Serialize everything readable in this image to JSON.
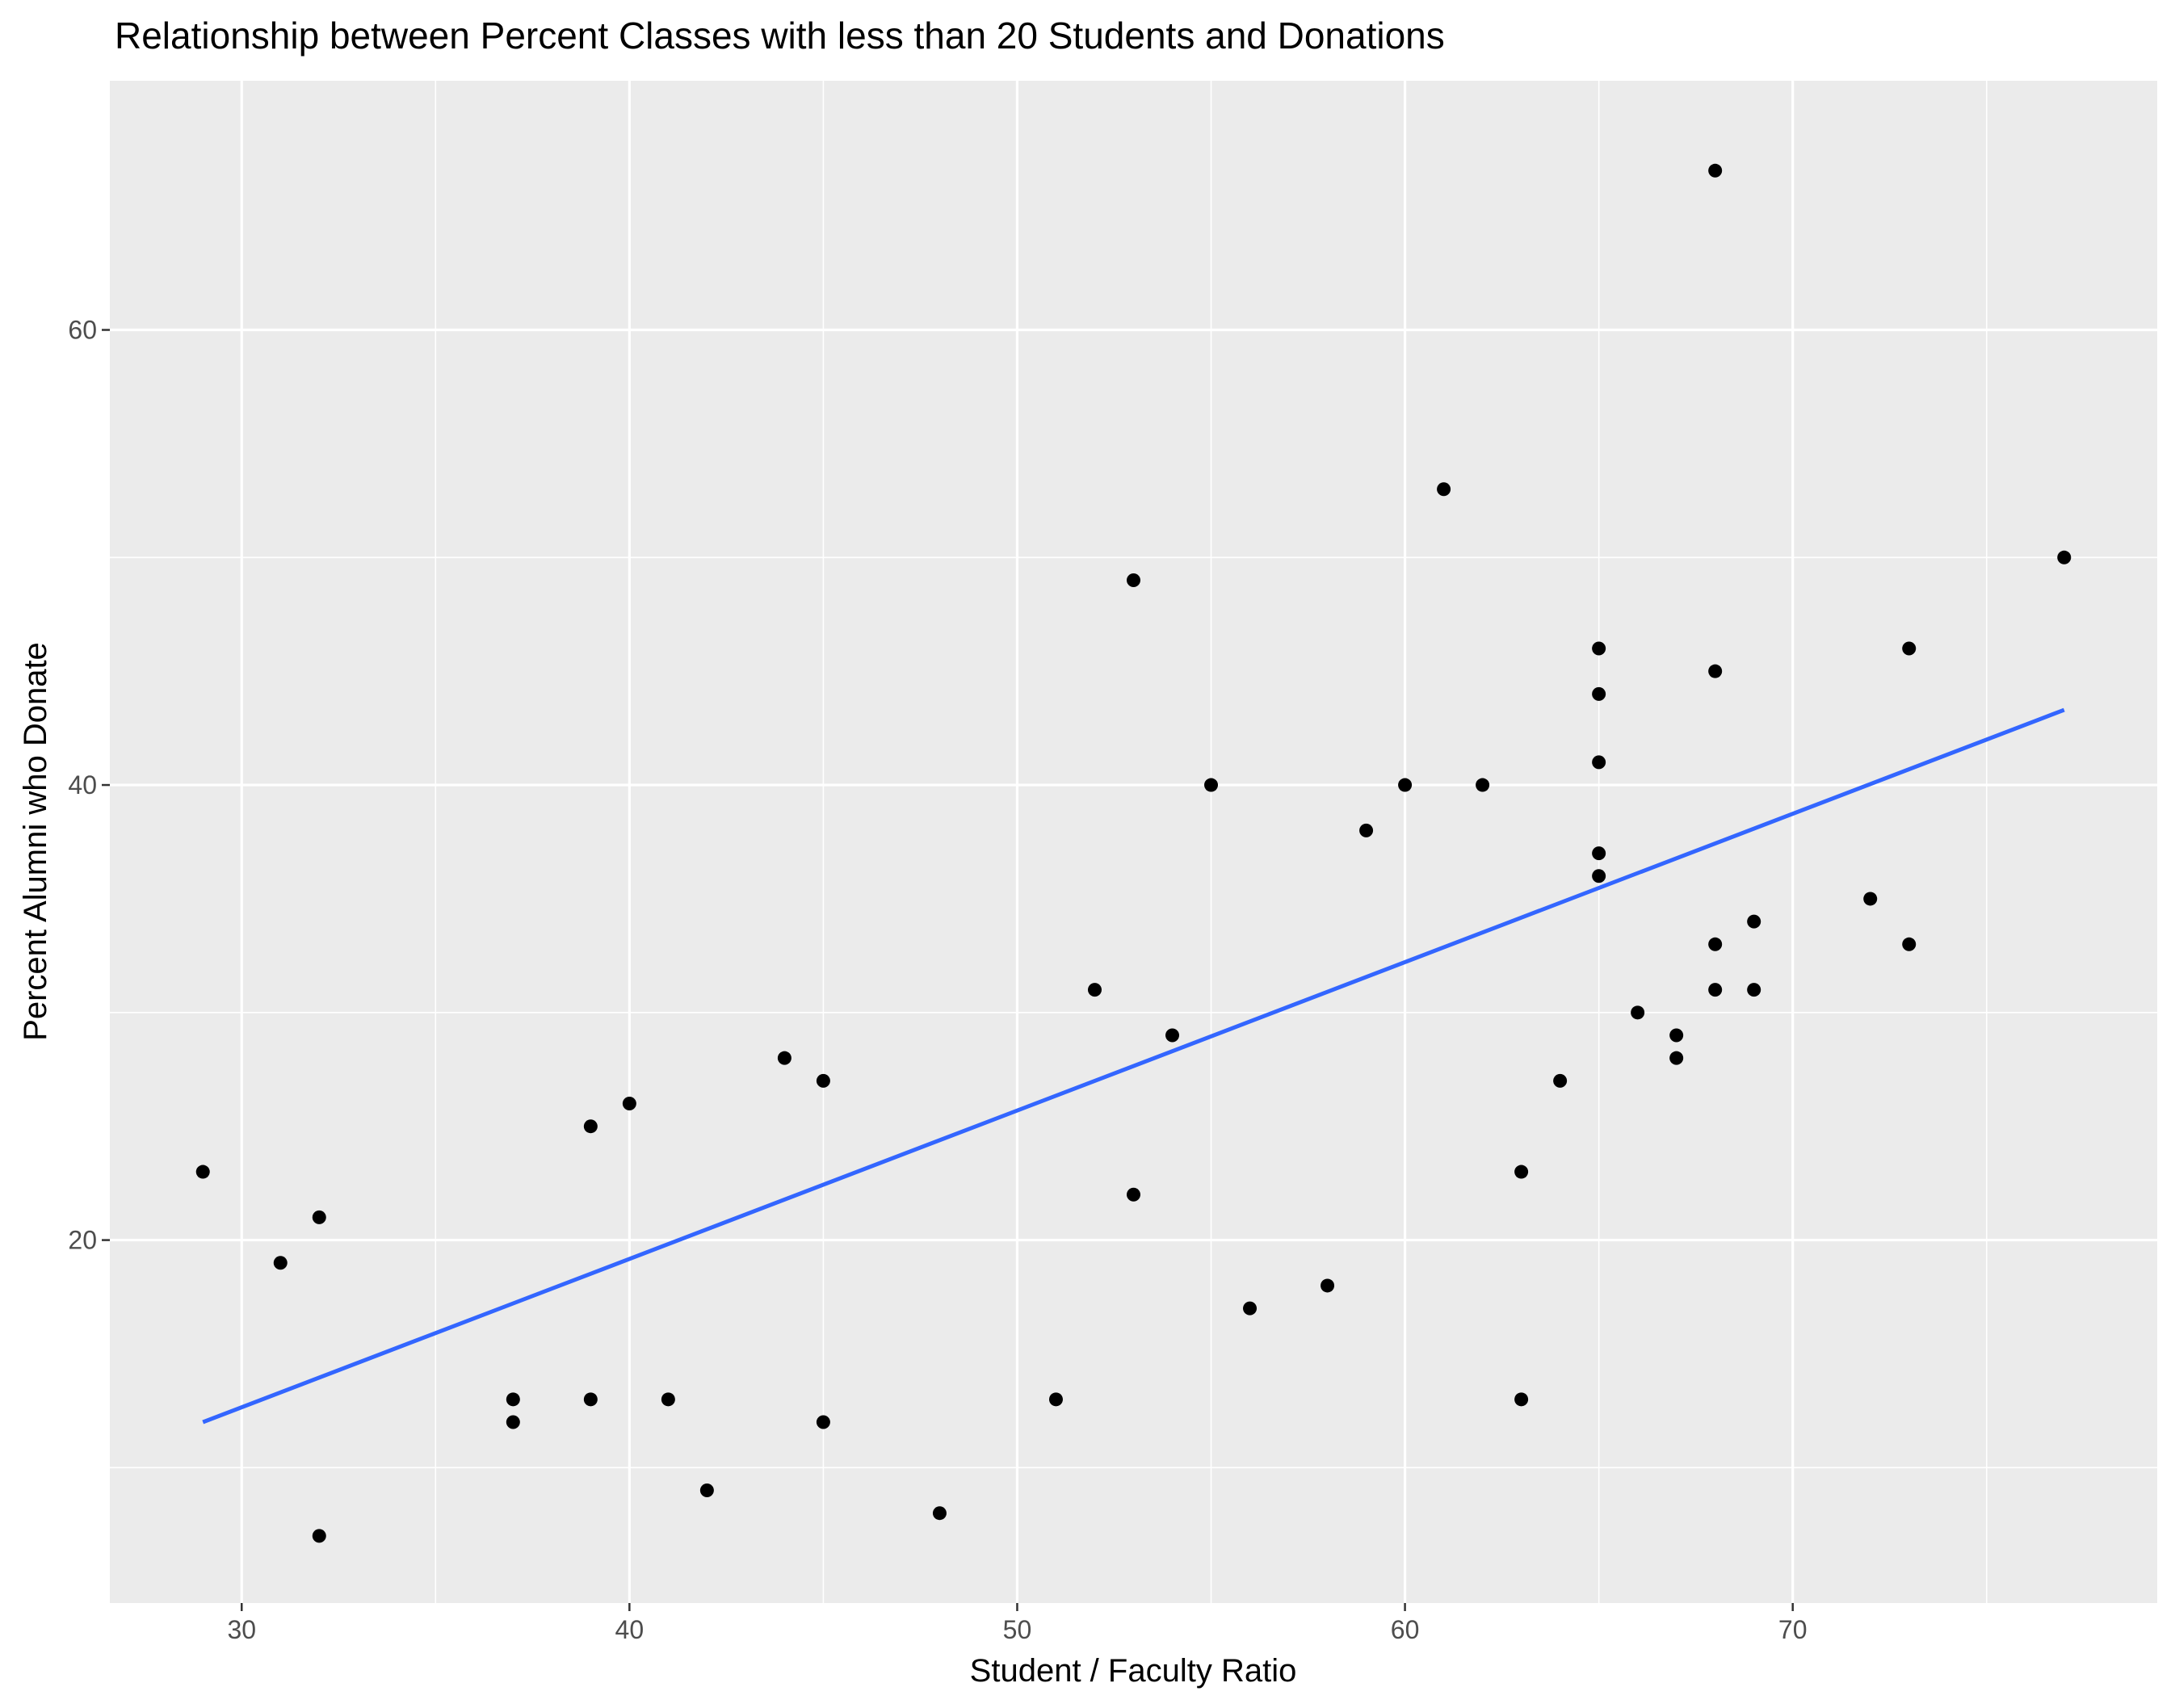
{
  "chart_data": {
    "type": "scatter",
    "title": "Relationship between Percent Classes with less than 20 Students and Donations",
    "xlabel": "Student / Faculty Ratio",
    "ylabel": "Percent Alumni who Donate",
    "xlim": [
      26.6,
      79.4
    ],
    "ylim": [
      4.05,
      70.95
    ],
    "x_ticks": [
      30,
      40,
      50,
      60,
      70
    ],
    "x_tick_labels": [
      "30",
      "40",
      "50",
      "60",
      "70"
    ],
    "x_minor_ticks": [
      35,
      45,
      55,
      65,
      75
    ],
    "y_ticks": [
      20,
      40,
      60
    ],
    "y_tick_labels": [
      "20",
      "40",
      "60"
    ],
    "y_minor_ticks": [
      10,
      30,
      50
    ],
    "grid": true,
    "legend": "none",
    "colors": {
      "panel_background": "#ebebeb",
      "grid": "#ffffff",
      "points": "#000000",
      "fit_line": "#3366ff"
    },
    "points": [
      {
        "x": 29,
        "y": 23
      },
      {
        "x": 31,
        "y": 19
      },
      {
        "x": 32,
        "y": 21
      },
      {
        "x": 32,
        "y": 7
      },
      {
        "x": 37,
        "y": 13
      },
      {
        "x": 37,
        "y": 12
      },
      {
        "x": 39,
        "y": 25
      },
      {
        "x": 39,
        "y": 13
      },
      {
        "x": 40,
        "y": 26
      },
      {
        "x": 41,
        "y": 13
      },
      {
        "x": 42,
        "y": 9
      },
      {
        "x": 44,
        "y": 28
      },
      {
        "x": 45,
        "y": 27
      },
      {
        "x": 45,
        "y": 12
      },
      {
        "x": 48,
        "y": 8
      },
      {
        "x": 51,
        "y": 13
      },
      {
        "x": 52,
        "y": 31
      },
      {
        "x": 53,
        "y": 49
      },
      {
        "x": 53,
        "y": 22
      },
      {
        "x": 54,
        "y": 29
      },
      {
        "x": 55,
        "y": 40
      },
      {
        "x": 56,
        "y": 17
      },
      {
        "x": 58,
        "y": 18
      },
      {
        "x": 59,
        "y": 38
      },
      {
        "x": 60,
        "y": 40
      },
      {
        "x": 61,
        "y": 53
      },
      {
        "x": 62,
        "y": 40
      },
      {
        "x": 63,
        "y": 23
      },
      {
        "x": 63,
        "y": 13
      },
      {
        "x": 64,
        "y": 27
      },
      {
        "x": 65,
        "y": 46
      },
      {
        "x": 65,
        "y": 44
      },
      {
        "x": 65,
        "y": 41
      },
      {
        "x": 65,
        "y": 37
      },
      {
        "x": 65,
        "y": 36
      },
      {
        "x": 66,
        "y": 30
      },
      {
        "x": 67,
        "y": 29
      },
      {
        "x": 67,
        "y": 28
      },
      {
        "x": 68,
        "y": 67
      },
      {
        "x": 68,
        "y": 45
      },
      {
        "x": 68,
        "y": 33
      },
      {
        "x": 68,
        "y": 31
      },
      {
        "x": 69,
        "y": 34
      },
      {
        "x": 69,
        "y": 31
      },
      {
        "x": 72,
        "y": 35
      },
      {
        "x": 73,
        "y": 46
      },
      {
        "x": 73,
        "y": 33
      },
      {
        "x": 77,
        "y": 50
      }
    ],
    "fit_line": {
      "method": "linear",
      "x": [
        29,
        77
      ],
      "y": [
        12.0,
        43.3
      ]
    }
  }
}
